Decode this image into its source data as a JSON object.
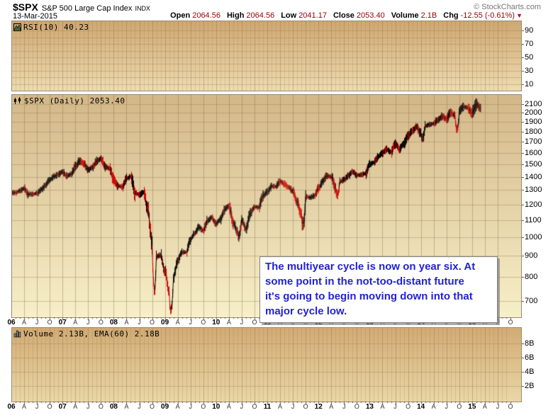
{
  "header": {
    "symbol": "$SPX",
    "name": "S&P 500 Large Cap Index",
    "exchange": "INDX",
    "copyright": "© StockCharts.com",
    "date": "13-Mar-2015",
    "quote": [
      {
        "label": "Open",
        "value": "2064.56"
      },
      {
        "label": "High",
        "value": "2064.56"
      },
      {
        "label": "Low",
        "value": "2041.17"
      },
      {
        "label": "Close",
        "value": "2053.40"
      },
      {
        "label": "Volume",
        "value": "2.1B"
      },
      {
        "label": "Chg",
        "value": "-12.55 (-0.61%)"
      }
    ],
    "direction": "down"
  },
  "rsi_panel": {
    "label": "RSI(10) 40.23",
    "axis": [
      90,
      70,
      50,
      30,
      10
    ]
  },
  "main_panel": {
    "label": "$SPX (Daily) 2053.40",
    "axis": [
      2100,
      2000,
      1900,
      1800,
      1700,
      1600,
      1500,
      1400,
      1300,
      1200,
      1100,
      1000,
      900,
      800,
      700
    ]
  },
  "vol_panel": {
    "label": "Volume 2.13B, EMA(60) 2.18B",
    "axis": [
      "8B",
      "6B",
      "4B",
      "2B"
    ]
  },
  "x_axis": {
    "years": [
      "06",
      "07",
      "08",
      "09",
      "10",
      "11",
      "12",
      "13",
      "14",
      "15"
    ],
    "quarter_labels": [
      "A",
      "J",
      "O"
    ]
  },
  "annotation": {
    "color": "#2222d4",
    "lines": [
      "The multiyear cycle is now on year six. At",
      "some point in the not-too-distant future",
      "it's going to begin moving down into that",
      "major cycle low."
    ]
  },
  "colors": {
    "quote_value": "#990000",
    "candle_up": "#000000",
    "candle_down": "#cc0000",
    "grid": "#a98f68"
  },
  "chart_data": {
    "type": "line",
    "title": "$SPX S&P 500 Large Cap Index (Daily) — candlestick price history Jan 2006 to 13-Mar-2015",
    "x_start": "2006-01",
    "x_interval": "month",
    "x_end_label": "13-Mar-2015",
    "y_scale": "log",
    "ylim": [
      650,
      2150
    ],
    "y_ticks": [
      700,
      800,
      900,
      1000,
      1100,
      1200,
      1300,
      1400,
      1500,
      1600,
      1700,
      1800,
      1900,
      2000,
      2100
    ],
    "monthly_closes": [
      1280,
      1281,
      1295,
      1311,
      1270,
      1270,
      1277,
      1304,
      1336,
      1378,
      1401,
      1418,
      1438,
      1407,
      1421,
      1482,
      1531,
      1503,
      1455,
      1474,
      1527,
      1549,
      1481,
      1468,
      1379,
      1331,
      1323,
      1386,
      1400,
      1280,
      1267,
      1283,
      1166,
      969,
      896,
      903,
      826,
      735,
      798,
      873,
      919,
      919,
      987,
      1021,
      1057,
      1036,
      1096,
      1115,
      1074,
      1104,
      1169,
      1187,
      1089,
      1031,
      1102,
      1049,
      1141,
      1183,
      1181,
      1258,
      1286,
      1327,
      1326,
      1364,
      1345,
      1321,
      1292,
      1219,
      1131,
      1253,
      1247,
      1258,
      1312,
      1366,
      1408,
      1398,
      1310,
      1362,
      1379,
      1407,
      1441,
      1412,
      1416,
      1426,
      1498,
      1515,
      1569,
      1598,
      1631,
      1606,
      1686,
      1633,
      1682,
      1757,
      1806,
      1848,
      1783,
      1859,
      1872,
      1884,
      1924,
      1960,
      1931,
      2003,
      1972,
      2018,
      2068,
      2059,
      1995,
      2105,
      2053.4
    ],
    "monthly_lows_override": {
      "34": 741,
      "38": 667,
      "54": 1011,
      "69": 1075,
      "77": 1267,
      "97": 1741,
      "105": 1820
    },
    "last_close": 2053.4,
    "open": 2064.56,
    "high": 2064.56,
    "low": 2041.17,
    "close": 2053.4,
    "change": -12.55,
    "change_pct": -0.61,
    "indicators": {
      "rsi": {
        "period": 10,
        "last": 40.23,
        "axis_range": [
          0,
          100
        ]
      },
      "volume": {
        "last": "2.13B",
        "ema60": "2.18B",
        "axis_ticks_billion": [
          2,
          4,
          6,
          8
        ]
      }
    }
  }
}
